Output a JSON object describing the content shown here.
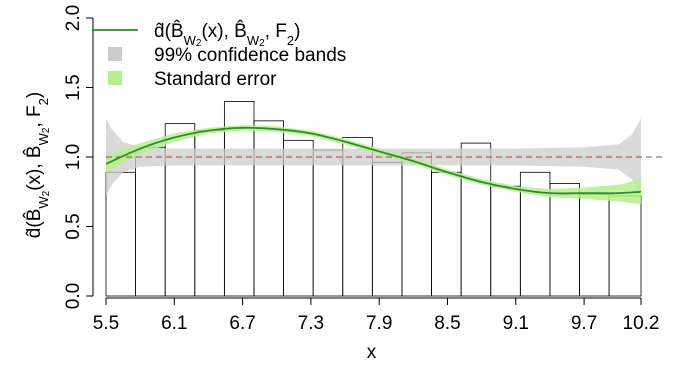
{
  "chart_data": {
    "type": "bar",
    "xlabel": "x",
    "xlim": [
      5.5,
      10.2
    ],
    "ylim": [
      0,
      2
    ],
    "x_ticks": [
      "5.5",
      "6.1",
      "6.7",
      "7.3",
      "7.9",
      "8.5",
      "9.1",
      "9.7",
      "10.2"
    ],
    "x_tick_values": [
      5.5,
      6.1,
      6.7,
      7.3,
      7.9,
      8.5,
      9.1,
      9.7,
      10.2
    ],
    "y_ticks": [
      "0.0",
      "0.5",
      "1.0",
      "1.5",
      "2.0"
    ],
    "y_tick_values": [
      0,
      0.5,
      1.0,
      1.5,
      2.0
    ],
    "bin_edges": [
      5.5,
      5.76,
      6.02,
      6.28,
      6.54,
      6.8,
      7.06,
      7.32,
      7.58,
      7.84,
      8.1,
      8.36,
      8.62,
      8.88,
      9.14,
      9.4,
      9.66,
      9.92,
      10.2
    ],
    "values": [
      0.89,
      1.07,
      1.24,
      1.19,
      1.4,
      1.26,
      1.12,
      1.05,
      1.14,
      0.96,
      1.03,
      0.89,
      1.1,
      0.79,
      0.89,
      0.81,
      0.73,
      0.72
    ],
    "reference_line": {
      "y": 1.0,
      "color": "#cc3333",
      "style": "dashed"
    },
    "curve": {
      "x": [
        5.5,
        5.8,
        6.1,
        6.4,
        6.7,
        7.0,
        7.3,
        7.6,
        7.9,
        8.2,
        8.5,
        8.8,
        9.1,
        9.4,
        9.7,
        10.0,
        10.2
      ],
      "y": [
        0.95,
        1.06,
        1.14,
        1.19,
        1.21,
        1.2,
        1.17,
        1.11,
        1.04,
        0.97,
        0.89,
        0.82,
        0.77,
        0.74,
        0.74,
        0.74,
        0.75
      ],
      "color": "#2e8b2e"
    },
    "standard_error": {
      "x": [
        5.5,
        5.8,
        6.1,
        6.4,
        6.7,
        7.0,
        7.3,
        7.6,
        7.9,
        8.2,
        8.5,
        8.8,
        9.1,
        9.4,
        9.7,
        10.0,
        10.2
      ],
      "upper": [
        1.01,
        1.1,
        1.17,
        1.21,
        1.23,
        1.22,
        1.19,
        1.13,
        1.06,
        0.99,
        0.91,
        0.84,
        0.79,
        0.77,
        0.78,
        0.8,
        0.84
      ],
      "lower": [
        0.89,
        1.02,
        1.11,
        1.17,
        1.19,
        1.18,
        1.15,
        1.09,
        1.02,
        0.95,
        0.87,
        0.8,
        0.75,
        0.71,
        0.7,
        0.68,
        0.66
      ],
      "color": "#b4f08c"
    },
    "confidence_bands": {
      "x": [
        5.5,
        5.55,
        5.65,
        5.8,
        6.1,
        6.7,
        7.3,
        7.9,
        8.5,
        9.1,
        9.7,
        10.0,
        10.12,
        10.2
      ],
      "upper": [
        1.28,
        1.2,
        1.11,
        1.07,
        1.06,
        1.06,
        1.06,
        1.06,
        1.06,
        1.06,
        1.07,
        1.09,
        1.16,
        1.28
      ],
      "lower": [
        0.72,
        0.8,
        0.89,
        0.93,
        0.94,
        0.94,
        0.94,
        0.94,
        0.94,
        0.94,
        0.93,
        0.91,
        0.84,
        0.72
      ],
      "color": "#cccccc"
    },
    "legend": {
      "position": "top-left",
      "entries": [
        {
          "key": "curve",
          "pre": "d̂(",
          "b1": "B̂",
          "s1": "W",
          "s1n": "2",
          "mid": "(x), ",
          "b2": "B̂",
          "s2": "W",
          "s2n": "2",
          "post": ", F",
          "fn": "2",
          "end": ")"
        },
        {
          "key": "confidence_bands",
          "label": "99% confidence bands"
        },
        {
          "key": "standard_error",
          "label": "Standard error"
        }
      ]
    },
    "ylabel_parts": {
      "pre": "d̂(",
      "b1": "B̂",
      "s1": "W",
      "s1n": "2",
      "mid": "(x), ",
      "b2": "B̂",
      "s2": "W",
      "s2n": "2",
      "post": ", F",
      "fn": "2",
      "end": ")"
    }
  }
}
